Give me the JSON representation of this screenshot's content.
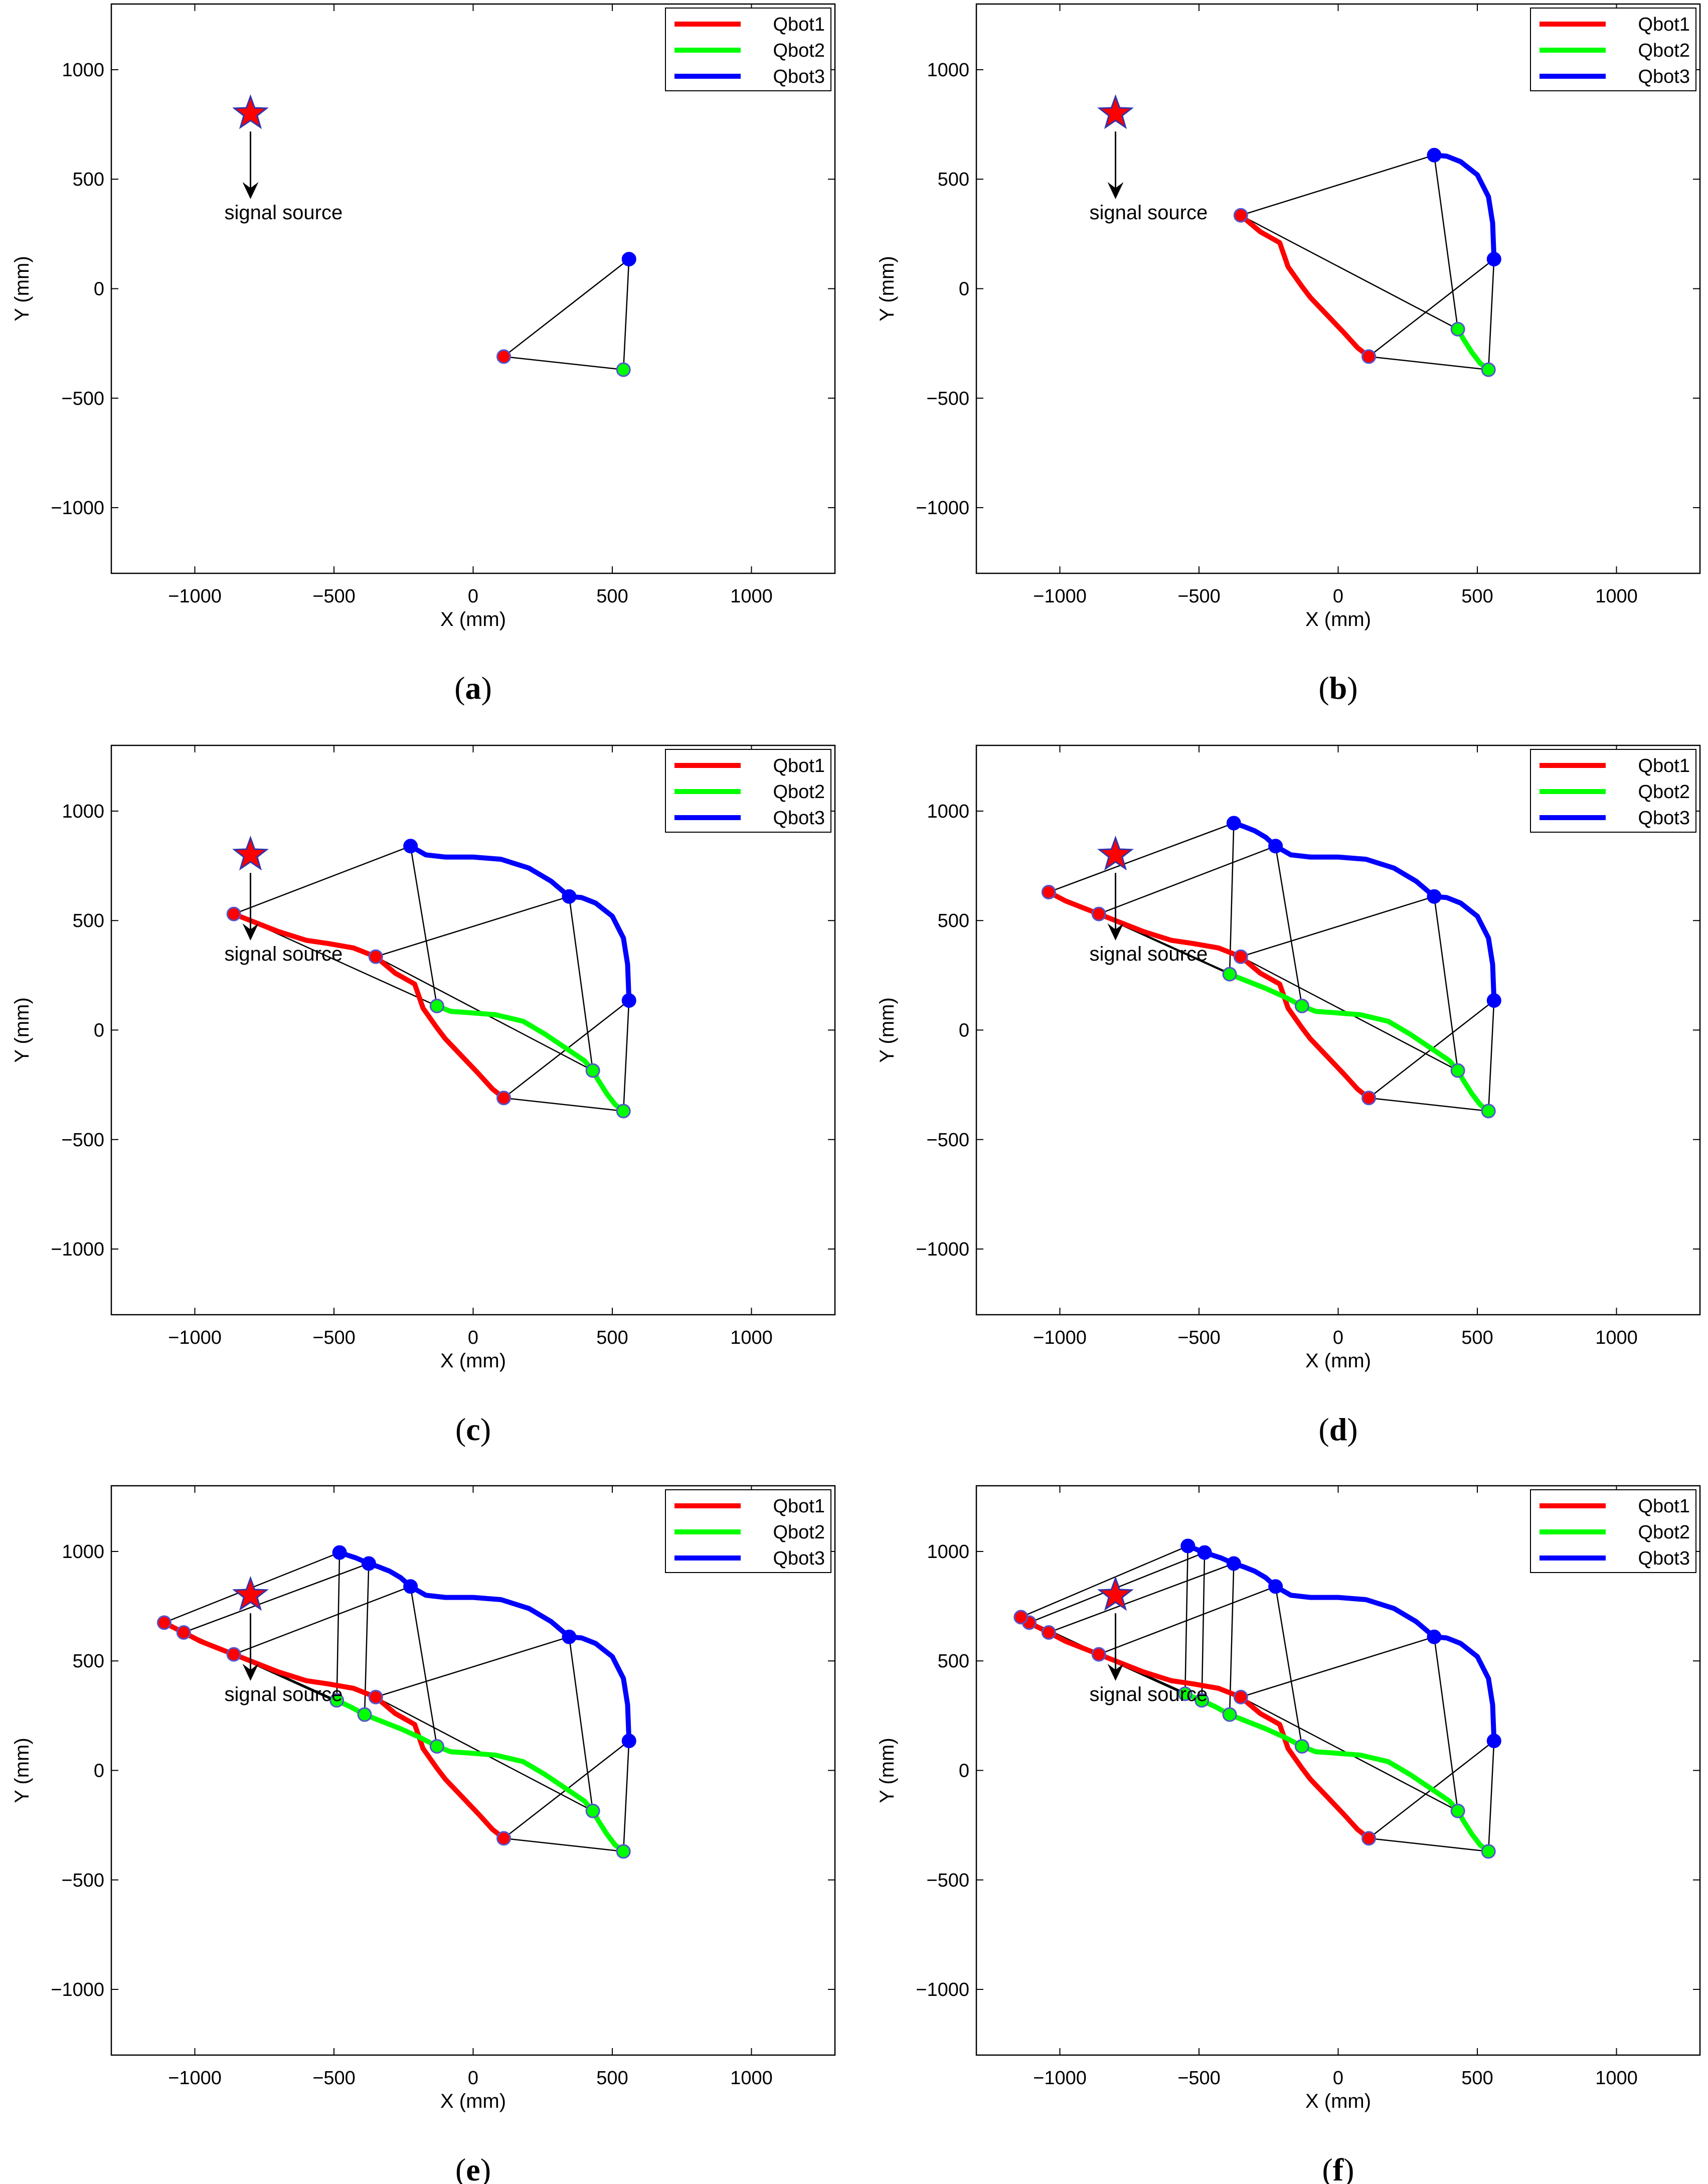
{
  "figure": {
    "colors": {
      "qbot1": "#ff0000",
      "qbot2": "#00ff00",
      "qbot3": "#0000ff",
      "star_fill": "#ff0000",
      "star_edge": "#3333aa",
      "link": "#000000"
    },
    "axes_common": {
      "xlabel": "X (mm)",
      "ylabel": "Y (mm)",
      "xlim": [
        -1300,
        1300
      ],
      "ylim": [
        -1300,
        1300
      ],
      "xticks": [
        -1000,
        -500,
        0,
        500,
        1000
      ],
      "yticks": [
        -1000,
        -500,
        0,
        500,
        1000
      ],
      "xtick_labels": [
        "−1000",
        "−500",
        "0",
        "500",
        "1000"
      ],
      "ytick_labels": [
        "−1000",
        "−500",
        "0",
        "500",
        "1000"
      ],
      "legend": [
        "Qbot1",
        "Qbot2",
        "Qbot3"
      ],
      "annotation_text": "signal source"
    }
  },
  "chart_data": [
    {
      "type": "line",
      "caption": "a",
      "source": [
        -800,
        800
      ],
      "series": [
        {
          "name": "Qbot1",
          "x": [
            110
          ],
          "y": [
            -310
          ]
        },
        {
          "name": "Qbot2",
          "x": [
            540
          ],
          "y": [
            -370
          ]
        },
        {
          "name": "Qbot3",
          "x": [
            560
          ],
          "y": [
            135
          ]
        }
      ],
      "formations": [
        [
          [
            110,
            -310
          ],
          [
            540,
            -370
          ],
          [
            560,
            135
          ]
        ]
      ]
    },
    {
      "type": "line",
      "caption": "b",
      "source": [
        -800,
        800
      ],
      "series": [
        {
          "name": "Qbot1",
          "x": [
            110,
            70,
            20,
            -40,
            -100,
            -130,
            -180,
            -210,
            -280,
            -350
          ],
          "y": [
            -310,
            -270,
            -200,
            -120,
            -40,
            10,
            100,
            210,
            260,
            335
          ]
        },
        {
          "name": "Qbot2",
          "x": [
            540,
            510,
            480,
            450,
            430
          ],
          "y": [
            -370,
            -340,
            -290,
            -230,
            -185
          ]
        },
        {
          "name": "Qbot3",
          "x": [
            560,
            555,
            540,
            500,
            440,
            390,
            345
          ],
          "y": [
            135,
            300,
            420,
            520,
            580,
            605,
            610
          ]
        }
      ],
      "formations": [
        [
          [
            110,
            -310
          ],
          [
            540,
            -370
          ],
          [
            560,
            135
          ]
        ],
        [
          [
            -350,
            335
          ],
          [
            430,
            -185
          ],
          [
            345,
            610
          ]
        ]
      ]
    },
    {
      "type": "line",
      "caption": "c",
      "source": [
        -800,
        800
      ],
      "series": [
        {
          "name": "Qbot1",
          "x": [
            110,
            70,
            20,
            -40,
            -100,
            -130,
            -180,
            -210,
            -280,
            -350,
            -430,
            -520,
            -600,
            -700,
            -780,
            -860
          ],
          "y": [
            -310,
            -270,
            -200,
            -120,
            -40,
            10,
            100,
            210,
            260,
            335,
            375,
            395,
            410,
            450,
            490,
            530
          ]
        },
        {
          "name": "Qbot2",
          "x": [
            540,
            510,
            480,
            450,
            430,
            400,
            330,
            260,
            180,
            80,
            -20,
            -80,
            -130
          ],
          "y": [
            -370,
            -340,
            -290,
            -230,
            -185,
            -140,
            -80,
            -20,
            40,
            70,
            80,
            85,
            110
          ]
        },
        {
          "name": "Qbot3",
          "x": [
            560,
            555,
            540,
            500,
            440,
            390,
            345,
            280,
            200,
            100,
            0,
            -100,
            -170,
            -225
          ],
          "y": [
            135,
            300,
            420,
            520,
            580,
            605,
            610,
            680,
            740,
            780,
            790,
            790,
            800,
            840
          ]
        }
      ],
      "formations": [
        [
          [
            110,
            -310
          ],
          [
            540,
            -370
          ],
          [
            560,
            135
          ]
        ],
        [
          [
            -350,
            335
          ],
          [
            430,
            -185
          ],
          [
            345,
            610
          ]
        ],
        [
          [
            -860,
            530
          ],
          [
            -130,
            110
          ],
          [
            -225,
            840
          ]
        ]
      ]
    },
    {
      "type": "line",
      "caption": "d",
      "source": [
        -800,
        800
      ],
      "series": [
        {
          "name": "Qbot1",
          "x": [
            110,
            70,
            20,
            -40,
            -100,
            -130,
            -180,
            -210,
            -280,
            -350,
            -430,
            -520,
            -600,
            -700,
            -780,
            -860,
            -920,
            -980,
            -1040
          ],
          "y": [
            -310,
            -270,
            -200,
            -120,
            -40,
            10,
            100,
            210,
            260,
            335,
            375,
            395,
            410,
            450,
            490,
            530,
            560,
            590,
            630
          ]
        },
        {
          "name": "Qbot2",
          "x": [
            540,
            510,
            480,
            450,
            430,
            400,
            330,
            260,
            180,
            80,
            -20,
            -80,
            -130,
            -190,
            -260,
            -320,
            -390
          ],
          "y": [
            -370,
            -340,
            -290,
            -230,
            -185,
            -140,
            -80,
            -20,
            40,
            70,
            80,
            85,
            110,
            150,
            190,
            220,
            255
          ]
        },
        {
          "name": "Qbot3",
          "x": [
            560,
            555,
            540,
            500,
            440,
            390,
            345,
            280,
            200,
            100,
            0,
            -100,
            -170,
            -225,
            -260,
            -300,
            -340,
            -375
          ],
          "y": [
            135,
            300,
            420,
            520,
            580,
            605,
            610,
            680,
            740,
            780,
            790,
            790,
            800,
            840,
            880,
            910,
            930,
            945
          ]
        }
      ],
      "formations": [
        [
          [
            110,
            -310
          ],
          [
            540,
            -370
          ],
          [
            560,
            135
          ]
        ],
        [
          [
            -350,
            335
          ],
          [
            430,
            -185
          ],
          [
            345,
            610
          ]
        ],
        [
          [
            -860,
            530
          ],
          [
            -130,
            110
          ],
          [
            -225,
            840
          ]
        ],
        [
          [
            -1040,
            630
          ],
          [
            -390,
            255
          ],
          [
            -375,
            945
          ]
        ]
      ]
    },
    {
      "type": "line",
      "caption": "e",
      "source": [
        -800,
        800
      ],
      "series": [
        {
          "name": "Qbot1",
          "x": [
            110,
            70,
            20,
            -40,
            -100,
            -130,
            -180,
            -210,
            -280,
            -350,
            -430,
            -520,
            -600,
            -700,
            -780,
            -860,
            -920,
            -980,
            -1040,
            -1080,
            -1110
          ],
          "y": [
            -310,
            -270,
            -200,
            -120,
            -40,
            10,
            100,
            210,
            260,
            335,
            375,
            395,
            410,
            450,
            490,
            530,
            560,
            590,
            630,
            655,
            675
          ]
        },
        {
          "name": "Qbot2",
          "x": [
            540,
            510,
            480,
            450,
            430,
            400,
            330,
            260,
            180,
            80,
            -20,
            -80,
            -130,
            -190,
            -260,
            -320,
            -390,
            -440,
            -490
          ],
          "y": [
            -370,
            -340,
            -290,
            -230,
            -185,
            -140,
            -80,
            -20,
            40,
            70,
            80,
            85,
            110,
            150,
            190,
            220,
            255,
            290,
            320
          ]
        },
        {
          "name": "Qbot3",
          "x": [
            560,
            555,
            540,
            500,
            440,
            390,
            345,
            280,
            200,
            100,
            0,
            -100,
            -170,
            -225,
            -260,
            -300,
            -340,
            -375,
            -420,
            -480
          ],
          "y": [
            135,
            300,
            420,
            520,
            580,
            605,
            610,
            680,
            740,
            780,
            790,
            790,
            800,
            840,
            880,
            910,
            930,
            945,
            970,
            995
          ]
        }
      ],
      "formations": [
        [
          [
            110,
            -310
          ],
          [
            540,
            -370
          ],
          [
            560,
            135
          ]
        ],
        [
          [
            -350,
            335
          ],
          [
            430,
            -185
          ],
          [
            345,
            610
          ]
        ],
        [
          [
            -860,
            530
          ],
          [
            -130,
            110
          ],
          [
            -225,
            840
          ]
        ],
        [
          [
            -1040,
            630
          ],
          [
            -390,
            255
          ],
          [
            -375,
            945
          ]
        ],
        [
          [
            -1110,
            675
          ],
          [
            -490,
            320
          ],
          [
            -480,
            995
          ]
        ]
      ]
    },
    {
      "type": "line",
      "caption": "f",
      "source": [
        -800,
        800
      ],
      "series": [
        {
          "name": "Qbot1",
          "x": [
            110,
            70,
            20,
            -40,
            -100,
            -130,
            -180,
            -210,
            -280,
            -350,
            -430,
            -520,
            -600,
            -700,
            -780,
            -860,
            -920,
            -980,
            -1040,
            -1080,
            -1110,
            -1140
          ],
          "y": [
            -310,
            -270,
            -200,
            -120,
            -40,
            10,
            100,
            210,
            260,
            335,
            375,
            395,
            410,
            450,
            490,
            530,
            560,
            590,
            630,
            655,
            675,
            700
          ]
        },
        {
          "name": "Qbot2",
          "x": [
            540,
            510,
            480,
            450,
            430,
            400,
            330,
            260,
            180,
            80,
            -20,
            -80,
            -130,
            -190,
            -260,
            -320,
            -390,
            -440,
            -490,
            -520,
            -550
          ],
          "y": [
            -370,
            -340,
            -290,
            -230,
            -185,
            -140,
            -80,
            -20,
            40,
            70,
            80,
            85,
            110,
            150,
            190,
            220,
            255,
            290,
            320,
            335,
            350
          ]
        },
        {
          "name": "Qbot3",
          "x": [
            560,
            555,
            540,
            500,
            440,
            390,
            345,
            280,
            200,
            100,
            0,
            -100,
            -170,
            -225,
            -260,
            -300,
            -340,
            -375,
            -420,
            -480,
            -510,
            -540
          ],
          "y": [
            135,
            300,
            420,
            520,
            580,
            605,
            610,
            680,
            740,
            780,
            790,
            790,
            800,
            840,
            880,
            910,
            930,
            945,
            970,
            995,
            1010,
            1025
          ]
        }
      ],
      "formations": [
        [
          [
            110,
            -310
          ],
          [
            540,
            -370
          ],
          [
            560,
            135
          ]
        ],
        [
          [
            -350,
            335
          ],
          [
            430,
            -185
          ],
          [
            345,
            610
          ]
        ],
        [
          [
            -860,
            530
          ],
          [
            -130,
            110
          ],
          [
            -225,
            840
          ]
        ],
        [
          [
            -1040,
            630
          ],
          [
            -390,
            255
          ],
          [
            -375,
            945
          ]
        ],
        [
          [
            -1110,
            675
          ],
          [
            -490,
            320
          ],
          [
            -480,
            995
          ]
        ],
        [
          [
            -1140,
            700
          ],
          [
            -550,
            350
          ],
          [
            -540,
            1025
          ]
        ]
      ]
    }
  ]
}
